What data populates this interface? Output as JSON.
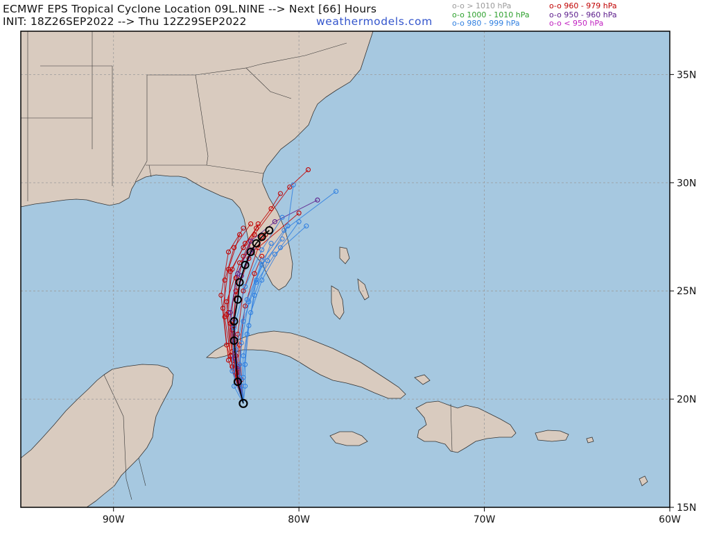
{
  "header": {
    "line1": "ECMWF EPS Tropical Cyclone Location 09L.NINE --> Next [66] Hours",
    "line2": "INIT: 18Z26SEP2022 --> Thu 12Z29SEP2022",
    "brand": "weathermodels.com"
  },
  "legend": [
    {
      "label": "o-o > 1010 hPa",
      "color": "#9a9a9a"
    },
    {
      "label": "o-o 1000 - 1010 hPa",
      "color": "#2ca02c"
    },
    {
      "label": "o-o 980 - 999 hPa",
      "color": "#2f7fe0"
    },
    {
      "label": "o-o 960 - 979 hPa",
      "color": "#c00000"
    },
    {
      "label": "o-o 950 - 960 hPa",
      "color": "#5a1a8a"
    },
    {
      "label": "o-o < 950 hPa",
      "color": "#c020c0"
    }
  ],
  "axes": {
    "lon_ticks": [
      {
        "lon": -90,
        "label": "90W"
      },
      {
        "lon": -80,
        "label": "80W"
      },
      {
        "lon": -70,
        "label": "70W"
      },
      {
        "lon": -60,
        "label": "60W"
      }
    ],
    "lat_ticks": [
      {
        "lat": 35,
        "label": "35N"
      },
      {
        "lat": 30,
        "label": "30N"
      },
      {
        "lat": 25,
        "label": "25N"
      },
      {
        "lat": 20,
        "label": "20N"
      },
      {
        "lat": 15,
        "label": "15N"
      }
    ],
    "lon_range": [
      -95,
      -60
    ],
    "lat_range": [
      15,
      37
    ]
  },
  "colors": {
    "ocean": "#a6c8e0",
    "land": "#d9cbbf",
    "border": "#333333",
    "grid": "#9a9a9a",
    "mean_track": "#000000"
  },
  "tracks": {
    "start": [
      -83.0,
      19.8
    ],
    "mean": [
      [
        -83.0,
        19.8
      ],
      [
        -83.3,
        20.8
      ],
      [
        -83.5,
        22.7
      ],
      [
        -83.5,
        23.6
      ],
      [
        -83.3,
        24.6
      ],
      [
        -83.2,
        25.4
      ],
      [
        -82.9,
        26.2
      ],
      [
        -82.6,
        26.8
      ],
      [
        -82.3,
        27.2
      ],
      [
        -82.0,
        27.5
      ],
      [
        -81.6,
        27.8
      ]
    ],
    "members": [
      {
        "color": "#c00000",
        "points": [
          [
            -83.0,
            19.8
          ],
          [
            -83.6,
            21.5
          ],
          [
            -84.0,
            23.8
          ],
          [
            -84.0,
            25.5
          ],
          [
            -83.5,
            27.0
          ],
          [
            -82.6,
            28.1
          ]
        ]
      },
      {
        "color": "#c00000",
        "points": [
          [
            -83.0,
            19.8
          ],
          [
            -83.8,
            21.8
          ],
          [
            -84.1,
            24.2
          ],
          [
            -83.8,
            26.0
          ],
          [
            -83.2,
            27.6
          ]
        ]
      },
      {
        "color": "#c00000",
        "points": [
          [
            -83.0,
            19.8
          ],
          [
            -83.4,
            21.2
          ],
          [
            -83.7,
            23.5
          ],
          [
            -83.4,
            25.6
          ],
          [
            -82.4,
            27.6
          ],
          [
            -80.5,
            29.8
          ],
          [
            -79.5,
            30.6
          ]
        ]
      },
      {
        "color": "#c00000",
        "points": [
          [
            -83.0,
            19.8
          ],
          [
            -83.2,
            21.0
          ],
          [
            -83.3,
            23.0
          ],
          [
            -83.0,
            25.0
          ],
          [
            -82.2,
            27.0
          ],
          [
            -80.0,
            28.6
          ]
        ]
      },
      {
        "color": "#c00000",
        "points": [
          [
            -83.0,
            19.8
          ],
          [
            -83.5,
            21.6
          ],
          [
            -83.9,
            23.9
          ],
          [
            -83.6,
            26.0
          ],
          [
            -82.9,
            27.2
          ],
          [
            -81.5,
            28.8
          ],
          [
            -81.0,
            29.5
          ]
        ]
      },
      {
        "color": "#c00000",
        "points": [
          [
            -83.0,
            19.8
          ],
          [
            -83.7,
            22.0
          ],
          [
            -83.9,
            24.5
          ],
          [
            -83.2,
            26.3
          ],
          [
            -82.0,
            27.5
          ]
        ]
      },
      {
        "color": "#c00000",
        "points": [
          [
            -83.0,
            19.8
          ],
          [
            -83.3,
            21.4
          ],
          [
            -83.6,
            23.2
          ],
          [
            -83.4,
            24.8
          ],
          [
            -82.7,
            26.5
          ],
          [
            -81.8,
            27.6
          ]
        ]
      },
      {
        "color": "#c00000",
        "points": [
          [
            -83.0,
            19.8
          ],
          [
            -83.9,
            22.5
          ],
          [
            -84.2,
            24.8
          ],
          [
            -83.8,
            26.8
          ],
          [
            -83.0,
            27.9
          ]
        ]
      },
      {
        "color": "#c00000",
        "points": [
          [
            -83.0,
            19.8
          ],
          [
            -83.1,
            20.9
          ],
          [
            -83.2,
            22.5
          ],
          [
            -82.9,
            24.3
          ],
          [
            -82.4,
            25.8
          ],
          [
            -82.0,
            26.6
          ]
        ]
      },
      {
        "color": "#c00000",
        "points": [
          [
            -83.0,
            19.8
          ],
          [
            -83.6,
            22.2
          ],
          [
            -83.8,
            24.0
          ],
          [
            -83.7,
            25.9
          ],
          [
            -83.0,
            27.0
          ],
          [
            -82.3,
            27.9
          ]
        ]
      },
      {
        "color": "#c00000",
        "points": [
          [
            -83.0,
            19.8
          ],
          [
            -83.2,
            20.6
          ],
          [
            -83.4,
            22.0
          ],
          [
            -83.5,
            23.4
          ],
          [
            -83.4,
            25.0
          ],
          [
            -83.0,
            26.6
          ],
          [
            -82.2,
            28.1
          ]
        ]
      },
      {
        "color": "#5a1a8a",
        "points": [
          [
            -83.0,
            19.8
          ],
          [
            -83.5,
            21.9
          ],
          [
            -83.7,
            24.0
          ],
          [
            -83.3,
            25.8
          ],
          [
            -82.6,
            27.3
          ],
          [
            -81.3,
            28.2
          ],
          [
            -79.0,
            29.2
          ]
        ]
      },
      {
        "color": "#5a1a8a",
        "points": [
          [
            -83.0,
            19.8
          ],
          [
            -83.3,
            21.5
          ],
          [
            -83.5,
            23.7
          ],
          [
            -83.1,
            25.7
          ],
          [
            -82.5,
            26.9
          ]
        ]
      },
      {
        "color": "#2f7fe0",
        "points": [
          [
            -83.0,
            19.8
          ],
          [
            -83.2,
            21.0
          ],
          [
            -83.1,
            22.6
          ],
          [
            -82.7,
            24.5
          ],
          [
            -82.0,
            26.4
          ],
          [
            -80.8,
            27.8
          ],
          [
            -78.0,
            29.6
          ]
        ]
      },
      {
        "color": "#2f7fe0",
        "points": [
          [
            -83.0,
            19.8
          ],
          [
            -83.5,
            20.6
          ],
          [
            -83.4,
            22.3
          ],
          [
            -82.8,
            24.6
          ],
          [
            -82.0,
            26.2
          ],
          [
            -80.9,
            27.4
          ]
        ]
      },
      {
        "color": "#2f7fe0",
        "points": [
          [
            -83.0,
            19.8
          ],
          [
            -83.2,
            21.6
          ],
          [
            -83.0,
            23.6
          ],
          [
            -82.3,
            25.4
          ],
          [
            -81.3,
            26.7
          ],
          [
            -79.6,
            28.0
          ]
        ]
      },
      {
        "color": "#2f7fe0",
        "points": [
          [
            -83.0,
            19.8
          ],
          [
            -83.1,
            20.6
          ],
          [
            -83.0,
            22.0
          ],
          [
            -82.6,
            24.0
          ],
          [
            -82.0,
            25.5
          ],
          [
            -81.0,
            27.0
          ],
          [
            -80.0,
            28.2
          ]
        ]
      },
      {
        "color": "#2f7fe0",
        "points": [
          [
            -83.0,
            19.8
          ],
          [
            -82.9,
            20.6
          ],
          [
            -82.9,
            21.6
          ],
          [
            -82.7,
            23.4
          ],
          [
            -82.3,
            25.5
          ],
          [
            -81.5,
            27.2
          ]
        ]
      },
      {
        "color": "#2f7fe0",
        "points": [
          [
            -83.0,
            19.8
          ],
          [
            -83.0,
            21.0
          ],
          [
            -82.8,
            23.0
          ],
          [
            -82.4,
            24.8
          ],
          [
            -81.7,
            26.4
          ],
          [
            -80.6,
            28.0
          ],
          [
            -80.3,
            29.9
          ]
        ]
      },
      {
        "color": "#2f7fe0",
        "points": [
          [
            -83.0,
            19.8
          ],
          [
            -83.6,
            21.3
          ],
          [
            -83.5,
            23.3
          ],
          [
            -82.9,
            25.2
          ],
          [
            -82.0,
            26.9
          ],
          [
            -80.9,
            28.4
          ]
        ]
      }
    ]
  }
}
